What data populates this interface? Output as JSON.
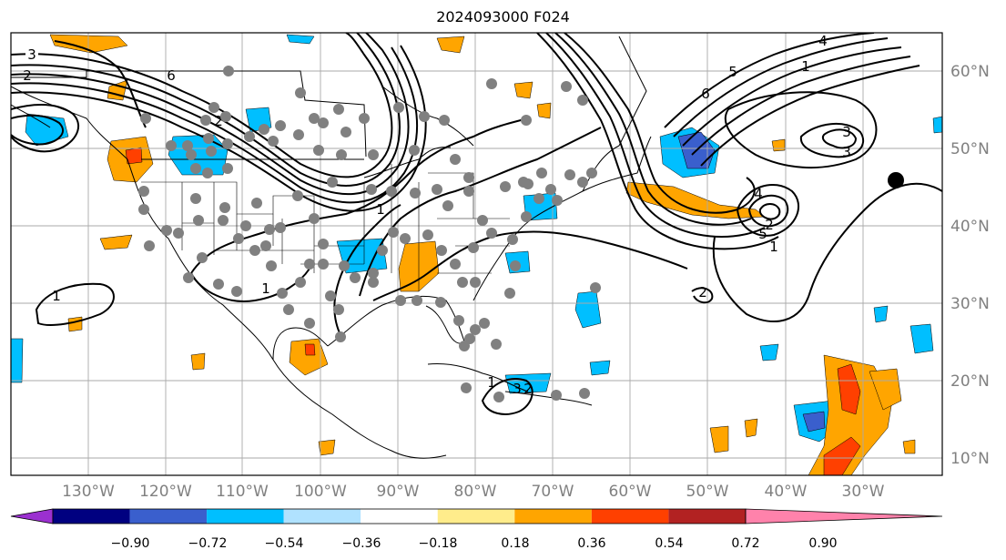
{
  "title": "2024093000 F024",
  "longitude_labels": [
    "130°W",
    "120°W",
    "110°W",
    "100°W",
    "90°W",
    "80°W",
    "70°W",
    "60°W",
    "50°W",
    "40°W",
    "30°W"
  ],
  "latitude_labels": [
    "60°N",
    "50°N",
    "40°N",
    "30°N",
    "20°N",
    "10°N"
  ],
  "colorbar": {
    "tick_labels": [
      "−0.90",
      "−0.72",
      "−0.54",
      "−0.36",
      "−0.18",
      "0.18",
      "0.36",
      "0.54",
      "0.72",
      "0.90"
    ],
    "colors": [
      "#9b30d0",
      "#000080",
      "#3a5fcd",
      "#00bfff",
      "#b0e2ff",
      "#ffffff",
      "#ffec8b",
      "#ffa500",
      "#ff4000",
      "#b22222",
      "#ff82ab"
    ]
  },
  "contour_labels": [
    "3",
    "2",
    "6",
    "1",
    "1",
    "1",
    "2",
    "2",
    "4",
    "3",
    "5",
    "6",
    "1",
    "4",
    "2",
    "5",
    "1",
    "1",
    "3",
    "2",
    "3"
  ],
  "fill_colors": {
    "orange": "#ffa500",
    "red": "#ff4000",
    "cyan": "#00bfff",
    "blue": "#3a5fcd",
    "pink": "#ff82ab"
  },
  "marker_color": "#808080"
}
